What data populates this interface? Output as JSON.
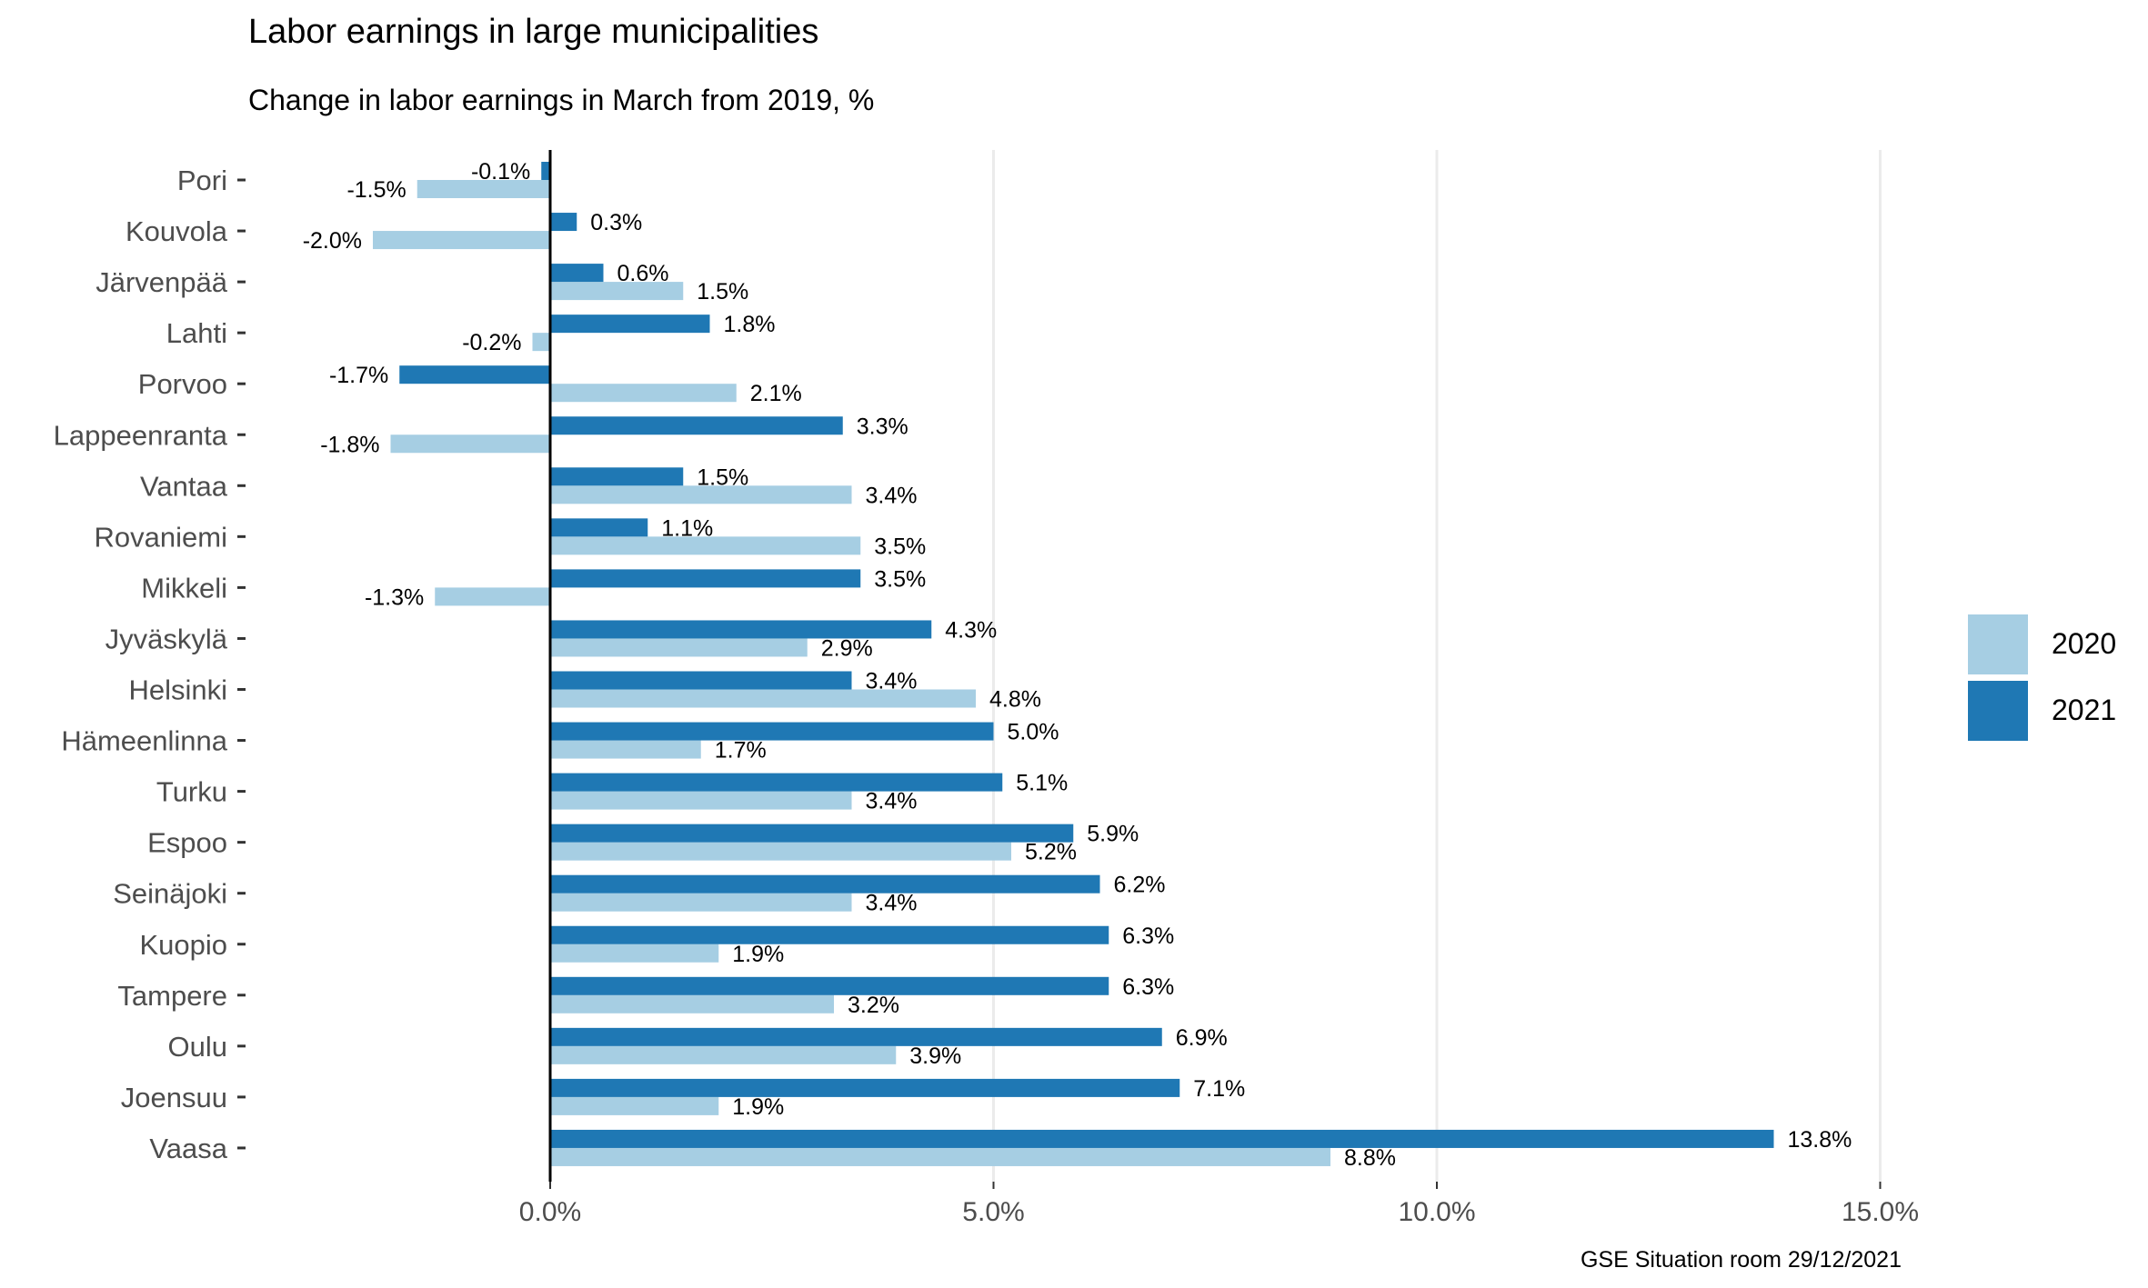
{
  "title": "Labor earnings in large municipalities",
  "subtitle": "Change in labor earnings in March from 2019, %",
  "caption": "GSE Situation room 29/12/2021",
  "colors": {
    "2020": "#a6cee3",
    "2021": "#1f78b4"
  },
  "chart_data": {
    "type": "bar",
    "orientation": "horizontal",
    "title": "Labor earnings in large municipalities",
    "subtitle": "Change in labor earnings in March from 2019, %",
    "xlabel": "",
    "ylabel": "",
    "xlim": [
      -3.1,
      15.6
    ],
    "xticks": [
      0,
      5,
      10,
      15
    ],
    "xtick_labels": [
      "0.0%",
      "5.0%",
      "10.0%",
      "15.0%"
    ],
    "grid": "vertical major",
    "legend_position": "right",
    "categories": [
      "Pori",
      "Kouvola",
      "Järvenpää",
      "Lahti",
      "Porvoo",
      "Lappeenranta",
      "Vantaa",
      "Rovaniemi",
      "Mikkeli",
      "Jyväskylä",
      "Helsinki",
      "Hämeenlinna",
      "Turku",
      "Espoo",
      "Seinäjoki",
      "Kuopio",
      "Tampere",
      "Oulu",
      "Joensuu",
      "Vaasa"
    ],
    "series": [
      {
        "name": "2020",
        "values": [
          -1.5,
          -2.0,
          1.5,
          -0.2,
          2.1,
          -1.8,
          3.4,
          3.5,
          -1.3,
          2.9,
          4.8,
          1.7,
          3.4,
          5.2,
          3.4,
          1.9,
          3.2,
          3.9,
          1.9,
          8.8
        ],
        "labels": [
          "-1.5%",
          "-2.0%",
          "1.5%",
          "-0.2%",
          "2.1%",
          "-1.8%",
          "3.4%",
          "3.5%",
          "-1.3%",
          "2.9%",
          "4.8%",
          "1.7%",
          "3.4%",
          "5.2%",
          "3.4%",
          "1.9%",
          "3.2%",
          "3.9%",
          "1.9%",
          "8.8%"
        ]
      },
      {
        "name": "2021",
        "values": [
          -0.1,
          0.3,
          0.6,
          1.8,
          -1.7,
          3.3,
          1.5,
          1.1,
          3.5,
          4.3,
          3.4,
          5.0,
          5.1,
          5.9,
          6.2,
          6.3,
          6.3,
          6.9,
          7.1,
          13.8
        ],
        "labels": [
          "-0.1%",
          "0.3%",
          "0.6%",
          "1.8%",
          "-1.7%",
          "3.3%",
          "1.5%",
          "1.1%",
          "3.5%",
          "4.3%",
          "3.4%",
          "5.0%",
          "5.1%",
          "5.9%",
          "6.2%",
          "6.3%",
          "6.3%",
          "6.9%",
          "7.1%",
          "13.8%"
        ]
      }
    ]
  }
}
